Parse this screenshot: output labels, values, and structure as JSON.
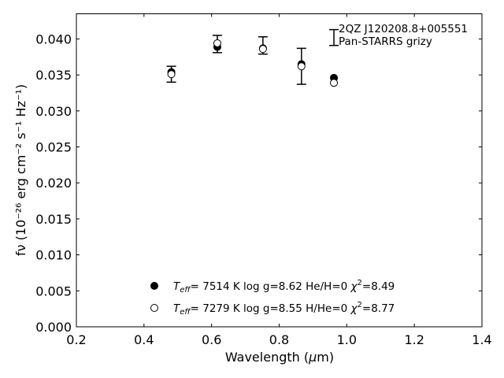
{
  "chart_data": {
    "type": "scatter",
    "title": "",
    "xlabel": {
      "pre": "Wavelength (",
      "mu": "μ",
      "post": "m)"
    },
    "ylabel": "fν (10⁻²⁶ erg cm⁻² s⁻¹ Hz⁻¹)",
    "xlim": [
      0.2,
      1.4
    ],
    "ylim": [
      0.0,
      0.0435
    ],
    "xticks": [
      0.2,
      0.4,
      0.6,
      0.8,
      1.0,
      1.2,
      1.4
    ],
    "xtick_labels": [
      "0.2",
      "0.4",
      "0.6",
      "0.8",
      "1.0",
      "1.2",
      "1.4"
    ],
    "yticks": [
      0.0,
      0.005,
      0.01,
      0.015,
      0.02,
      0.025,
      0.03,
      0.035,
      0.04
    ],
    "ytick_labels": [
      "0.000",
      "0.005",
      "0.010",
      "0.015",
      "0.020",
      "0.025",
      "0.030",
      "0.035",
      "0.040"
    ],
    "grid": false,
    "annotation": [
      "2QZ J120208.8+005551",
      "Pan-STARRS grizy"
    ],
    "observed": {
      "x": [
        0.481,
        0.617,
        0.752,
        0.866,
        0.962
      ],
      "y": [
        0.0351,
        0.0393,
        0.0391,
        0.0362,
        0.0402
      ],
      "yerr": [
        0.0011,
        0.0012,
        0.0012,
        0.0025,
        0.0011
      ]
    },
    "series": [
      {
        "marker": "filled-circle",
        "legend": {
          "teff": "7514 K",
          "logg": "log g=8.62",
          "comp": "He/H=0",
          "chi2": "=8.49"
        },
        "x": [
          0.481,
          0.617,
          0.752,
          0.866,
          0.962
        ],
        "y": [
          0.0354,
          0.0389,
          0.0387,
          0.0365,
          0.0346
        ]
      },
      {
        "marker": "open-circle",
        "legend": {
          "teff": "7279 K",
          "logg": "log g=8.55",
          "comp": "H/He=0",
          "chi2": "=8.77"
        },
        "x": [
          0.481,
          0.617,
          0.752,
          0.866,
          0.962
        ],
        "y": [
          0.0351,
          0.0394,
          0.0386,
          0.0362,
          0.0339
        ]
      }
    ]
  }
}
